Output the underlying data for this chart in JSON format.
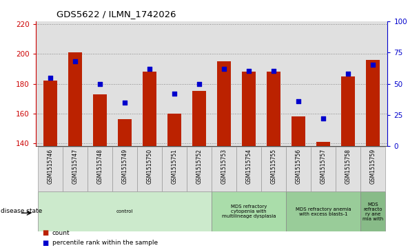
{
  "title": "GDS5622 / ILMN_1742026",
  "samples": [
    "GSM1515746",
    "GSM1515747",
    "GSM1515748",
    "GSM1515749",
    "GSM1515750",
    "GSM1515751",
    "GSM1515752",
    "GSM1515753",
    "GSM1515754",
    "GSM1515755",
    "GSM1515756",
    "GSM1515757",
    "GSM1515758",
    "GSM1515759"
  ],
  "counts": [
    182,
    201,
    173,
    156,
    188,
    160,
    175,
    195,
    188,
    188,
    158,
    141,
    185,
    196
  ],
  "percentile_ranks": [
    55,
    68,
    50,
    35,
    62,
    42,
    50,
    62,
    60,
    60,
    36,
    22,
    58,
    65
  ],
  "bar_color": "#bb2200",
  "dot_color": "#0000cc",
  "background_color": "#ffffff",
  "plot_bg_color": "#e0e0e0",
  "ylim_left": [
    138,
    222
  ],
  "ylim_right": [
    0,
    100
  ],
  "yticks_left": [
    140,
    160,
    180,
    200,
    220
  ],
  "yticks_right": [
    0,
    25,
    50,
    75,
    100
  ],
  "ylabel_left_color": "#cc0000",
  "ylabel_right_color": "#0000cc",
  "grid_color": "#888888",
  "disease_groups": [
    {
      "label": "control",
      "start": 0,
      "end": 7,
      "color": "#cceacc"
    },
    {
      "label": "MDS refractory\ncytopenia with\nmultilineage dysplasia",
      "start": 7,
      "end": 10,
      "color": "#aaddaa"
    },
    {
      "label": "MDS refractory anemia\nwith excess blasts-1",
      "start": 10,
      "end": 13,
      "color": "#99cc99"
    },
    {
      "label": "MDS\nrefracto\nry ane\nmia with",
      "start": 13,
      "end": 14,
      "color": "#88bb88"
    }
  ],
  "disease_state_label": "disease state",
  "legend_count_label": "count",
  "legend_pct_label": "percentile rank within the sample",
  "bar_width": 0.55
}
